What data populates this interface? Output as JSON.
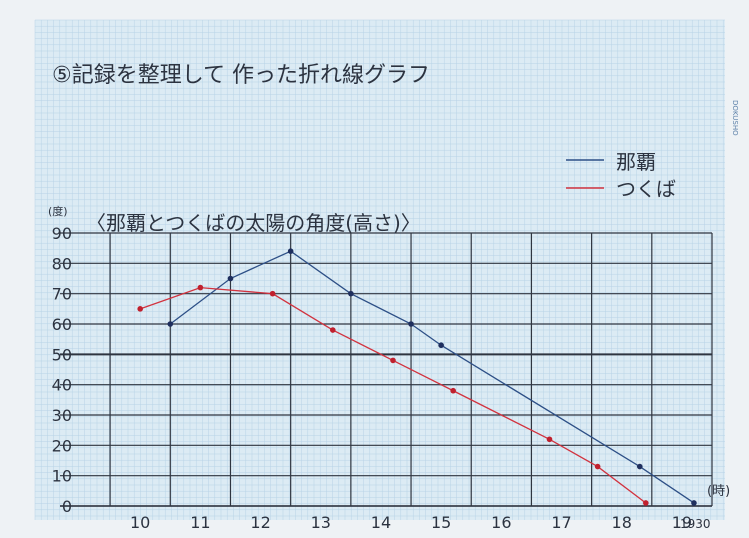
{
  "page": {
    "heading": "⑤記録を整理して 作った折れ線グラフ",
    "margin_note": "DOKUSHO"
  },
  "chart_data": {
    "type": "line",
    "title": "〈那覇とつくばの太陽の角度(高さ)〉",
    "xlabel": "(時)",
    "ylabel": "(度)",
    "xlim": [
      9,
      19.5
    ],
    "ylim": [
      0,
      90
    ],
    "x_ticks": [
      10,
      11,
      12,
      13,
      14,
      15,
      16,
      17,
      18,
      19
    ],
    "x_tick_labels": [
      "10",
      "11",
      "12",
      "13",
      "14",
      "15",
      "16",
      "17",
      "18",
      "19"
    ],
    "x_extra_label": "1930",
    "y_ticks": [
      0,
      10,
      20,
      30,
      40,
      50,
      60,
      70,
      80,
      90
    ],
    "y_tick_labels": [
      "0",
      "10",
      "20",
      "30",
      "40",
      "50",
      "60",
      "70",
      "80",
      "90"
    ],
    "legend_position": "top-right",
    "series": [
      {
        "name": "那覇",
        "color": "#2d4f86",
        "points": [
          [
            10.5,
            60
          ],
          [
            11.5,
            75
          ],
          [
            12.5,
            84
          ],
          [
            13.5,
            70
          ],
          [
            14.5,
            60
          ],
          [
            15.0,
            53
          ],
          [
            18.3,
            13
          ],
          [
            19.2,
            1
          ]
        ]
      },
      {
        "name": "つくば",
        "color": "#d2323e",
        "points": [
          [
            10.0,
            65
          ],
          [
            11.0,
            72
          ],
          [
            12.2,
            70
          ],
          [
            13.2,
            58
          ],
          [
            14.2,
            48
          ],
          [
            15.2,
            38
          ],
          [
            16.8,
            22
          ],
          [
            17.6,
            13
          ],
          [
            18.4,
            1
          ]
        ]
      }
    ]
  }
}
